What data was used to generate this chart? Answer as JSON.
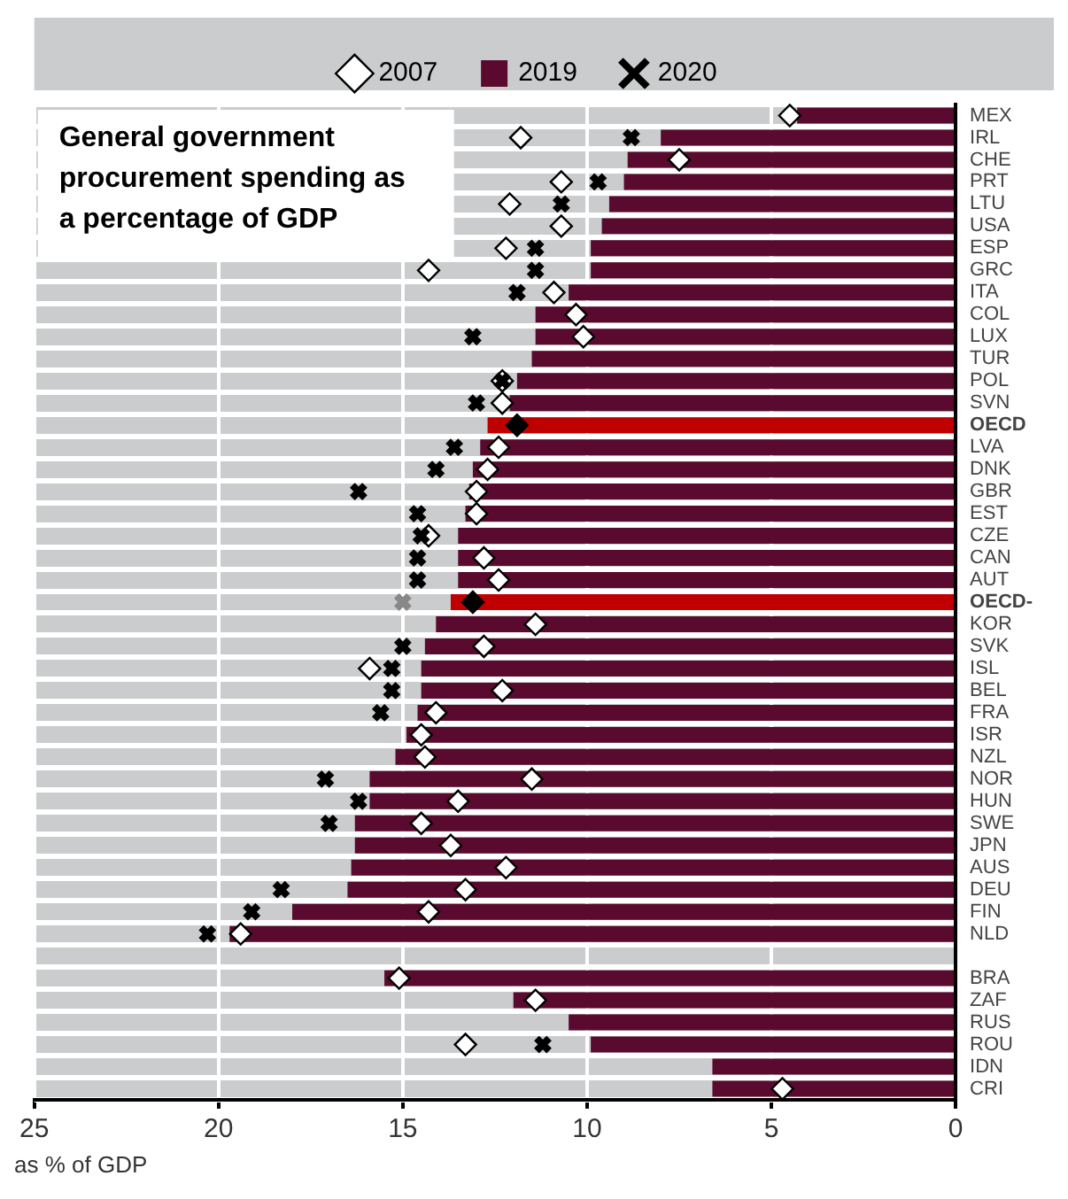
{
  "chart_data": {
    "type": "bar",
    "orientation": "horizontal",
    "title": "General government procurement spending as a percentage of GDP",
    "xlabel": "as % of GDP",
    "categories": [
      "MEX",
      "IRL",
      "CHE",
      "PRT",
      "LTU",
      "USA",
      "ESP",
      "GRC",
      "ITA",
      "COL",
      "LUX",
      "TUR",
      "POL",
      "SVN",
      "OECD",
      "LVA",
      "DNK",
      "GBR",
      "EST",
      "CZE",
      "CAN",
      "AUT",
      "OECD-",
      "KOR",
      "SVK",
      "ISL",
      "BEL",
      "FRA",
      "ISR",
      "NZL",
      "NOR",
      "HUN",
      "SWE",
      "JPN",
      "AUS",
      "DEU",
      "FIN",
      "NLD",
      null,
      "BRA",
      "ZAF",
      "RUS",
      "ROU",
      "IDN",
      "CRI"
    ],
    "series": [
      {
        "name": "2007",
        "type": "scatter",
        "marker": "diamond",
        "color": "#ffffff",
        "colors": [
          "#ffffff",
          "#ffffff",
          "#ffffff",
          "#ffffff",
          "#ffffff",
          "#ffffff",
          "#ffffff",
          "#ffffff",
          "#ffffff",
          "#ffffff",
          "#ffffff",
          "#ffffff",
          "#ffffff",
          "#ffffff",
          "#000000",
          "#ffffff",
          "#ffffff",
          "#ffffff",
          "#ffffff",
          "#ffffff",
          "#ffffff",
          "#ffffff",
          "#000000",
          "#ffffff",
          "#ffffff",
          "#ffffff",
          "#ffffff",
          "#ffffff",
          "#ffffff",
          "#ffffff",
          "#ffffff",
          "#ffffff",
          "#ffffff",
          "#ffffff",
          "#ffffff",
          "#ffffff",
          "#ffffff",
          "#ffffff",
          "#ffffff",
          "#ffffff",
          "#ffffff",
          "#ffffff",
          "#ffffff",
          "#ffffff",
          "#ffffff"
        ],
        "values": [
          4.5,
          11.8,
          7.5,
          10.7,
          12.1,
          10.7,
          12.2,
          14.3,
          10.9,
          10.3,
          10.1,
          null,
          12.3,
          12.3,
          11.9,
          12.4,
          12.7,
          13.0,
          13.0,
          14.3,
          12.8,
          12.4,
          13.1,
          11.4,
          12.8,
          15.9,
          12.3,
          14.1,
          14.5,
          14.4,
          11.5,
          13.5,
          14.5,
          13.7,
          12.2,
          13.3,
          14.3,
          19.4,
          null,
          15.1,
          11.4,
          null,
          13.3,
          null,
          4.7
        ]
      },
      {
        "name": "2019",
        "color": "#5a0a2e",
        "colors": [
          "#5a0a2e",
          "#5a0a2e",
          "#5a0a2e",
          "#5a0a2e",
          "#5a0a2e",
          "#5a0a2e",
          "#5a0a2e",
          "#5a0a2e",
          "#5a0a2e",
          "#5a0a2e",
          "#5a0a2e",
          "#5a0a2e",
          "#5a0a2e",
          "#5a0a2e",
          "#c00000",
          "#5a0a2e",
          "#5a0a2e",
          "#5a0a2e",
          "#5a0a2e",
          "#5a0a2e",
          "#5a0a2e",
          "#5a0a2e",
          "#c00000",
          "#5a0a2e",
          "#5a0a2e",
          "#5a0a2e",
          "#5a0a2e",
          "#5a0a2e",
          "#5a0a2e",
          "#5a0a2e",
          "#5a0a2e",
          "#5a0a2e",
          "#5a0a2e",
          "#5a0a2e",
          "#5a0a2e",
          "#5a0a2e",
          "#5a0a2e",
          "#5a0a2e",
          "#5a0a2e",
          "#5a0a2e",
          "#5a0a2e",
          "#5a0a2e",
          "#5a0a2e",
          "#5a0a2e",
          "#5a0a2e"
        ],
        "values": [
          4.3,
          8.0,
          8.9,
          9.0,
          9.4,
          9.6,
          9.9,
          9.9,
          10.5,
          11.4,
          11.4,
          11.5,
          11.9,
          12.1,
          12.7,
          12.9,
          13.1,
          13.2,
          13.3,
          13.5,
          13.5,
          13.5,
          13.7,
          14.1,
          14.4,
          14.5,
          14.5,
          14.6,
          14.9,
          15.2,
          15.9,
          15.9,
          16.3,
          16.3,
          16.4,
          16.5,
          18.0,
          19.7,
          null,
          15.5,
          12.0,
          10.5,
          9.9,
          6.6,
          6.6
        ]
      },
      {
        "name": "2020",
        "type": "scatter",
        "marker": "cross",
        "color": "#000000",
        "colors": [
          "#000000",
          "#000000",
          "#000000",
          "#000000",
          "#000000",
          "#000000",
          "#000000",
          "#000000",
          "#000000",
          "#000000",
          "#000000",
          "#000000",
          "#000000",
          "#000000",
          "#000000",
          "#000000",
          "#000000",
          "#000000",
          "#000000",
          "#000000",
          "#000000",
          "#000000",
          "#888888",
          "#000000",
          "#000000",
          "#000000",
          "#000000",
          "#000000",
          "#000000",
          "#000000",
          "#000000",
          "#000000",
          "#000000",
          "#000000",
          "#000000",
          "#000000",
          "#000000",
          "#000000",
          "#000000",
          "#000000",
          "#000000",
          "#000000",
          "#000000",
          "#000000",
          "#000000"
        ],
        "values": [
          null,
          8.8,
          null,
          9.7,
          10.7,
          null,
          11.4,
          11.4,
          11.9,
          null,
          13.1,
          null,
          12.3,
          13.0,
          null,
          13.6,
          14.1,
          16.2,
          14.6,
          14.5,
          14.6,
          14.6,
          15.0,
          null,
          15.0,
          15.3,
          15.3,
          15.6,
          null,
          null,
          17.1,
          16.2,
          17.0,
          null,
          null,
          18.3,
          19.1,
          20.3,
          null,
          null,
          null,
          null,
          11.2,
          null,
          null
        ]
      }
    ],
    "xlim": [
      25,
      0
    ],
    "xticks": [
      25,
      20,
      15,
      10,
      5,
      0
    ],
    "grid": true,
    "legend": "top"
  }
}
